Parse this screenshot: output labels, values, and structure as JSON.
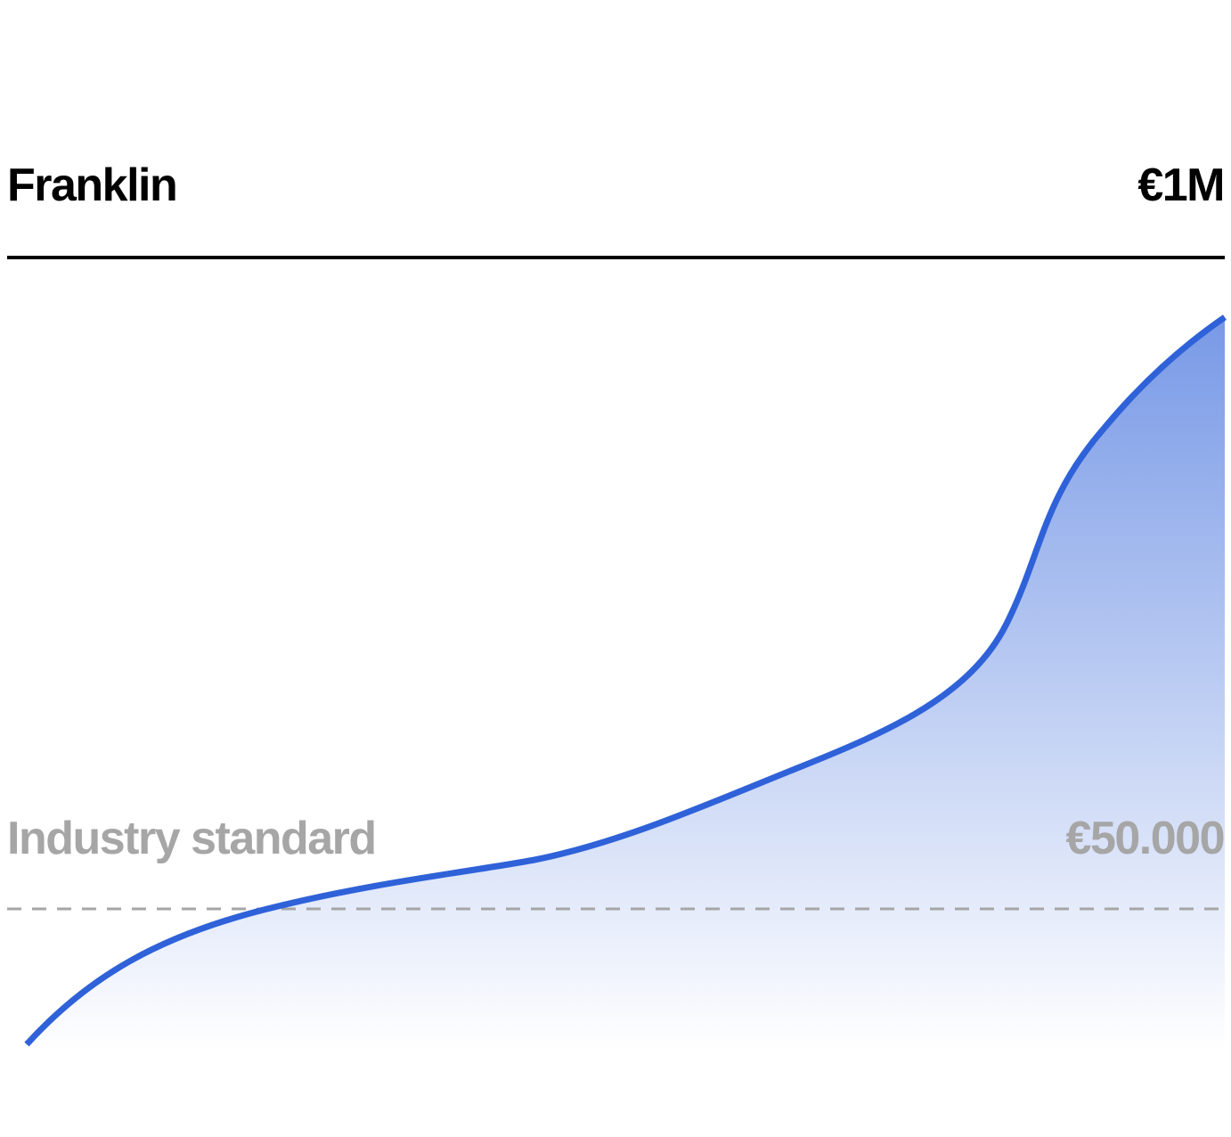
{
  "header": {
    "title": "Franklin",
    "value": "€1M"
  },
  "reference": {
    "label": "Industry standard",
    "value": "€50.000"
  }
}
